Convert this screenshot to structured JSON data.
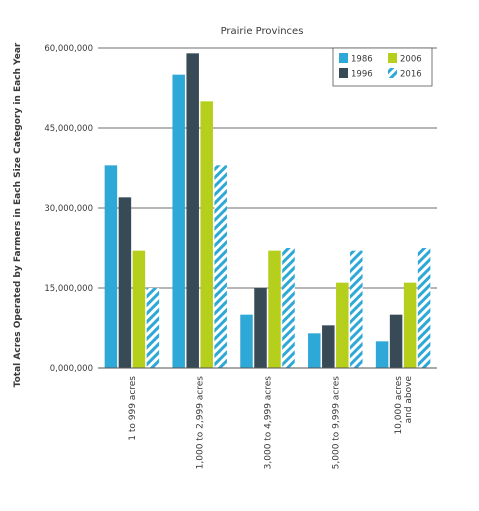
{
  "chart_data": {
    "type": "bar",
    "title": "Prairie Provinces",
    "ylabel": "Total Acres Operated by Farmers in Each Size Category in Each Year",
    "xlabel": "",
    "categories": [
      [
        "1 to 999 acres"
      ],
      [
        "1,000 to 2,999 acres"
      ],
      [
        "3,000 to 4,999 acres"
      ],
      [
        "5,000 to 9,999 acres"
      ],
      [
        "10,000 acres",
        "and above"
      ]
    ],
    "series": [
      {
        "name": "1986",
        "values": [
          38000000,
          55000000,
          10000000,
          6500000,
          5000000
        ],
        "color": "#2ea8d6",
        "pattern": "solid"
      },
      {
        "name": "1996",
        "values": [
          32000000,
          59000000,
          15000000,
          8000000,
          10000000
        ],
        "color": "#384a56",
        "pattern": "solid"
      },
      {
        "name": "2006",
        "values": [
          22000000,
          50000000,
          22000000,
          16000000,
          16000000
        ],
        "color": "#b5cf1c",
        "pattern": "solid"
      },
      {
        "name": "2016",
        "values": [
          15000000,
          38000000,
          22500000,
          22000000,
          22500000
        ],
        "color": "#2ea8d6",
        "pattern": "hatched"
      }
    ],
    "ylim": [
      0,
      60000000
    ],
    "yticks": [
      0,
      15000000,
      30000000,
      45000000,
      60000000
    ],
    "ytick_labels": [
      "0,000,000",
      "15,000,000",
      "30,000,000",
      "45,000,000",
      "60,000,000"
    ],
    "grid": true,
    "legend_position": "top-right"
  }
}
